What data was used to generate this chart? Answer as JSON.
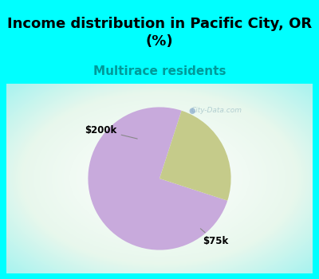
{
  "title": "Income distribution in Pacific City, OR\n(%)",
  "subtitle": "Multirace residents",
  "slices": [
    0.75,
    0.25
  ],
  "labels": [
    "$75k",
    "$200k"
  ],
  "colors": [
    "#c8aadc",
    "#c5cb8a"
  ],
  "title_fontsize": 13,
  "subtitle_fontsize": 11,
  "subtitle_color": "#009999",
  "bg_color_top": "#00ffff",
  "watermark": "City-Data.com",
  "startangle": 72,
  "figsize": [
    4.0,
    3.5
  ],
  "dpi": 100
}
